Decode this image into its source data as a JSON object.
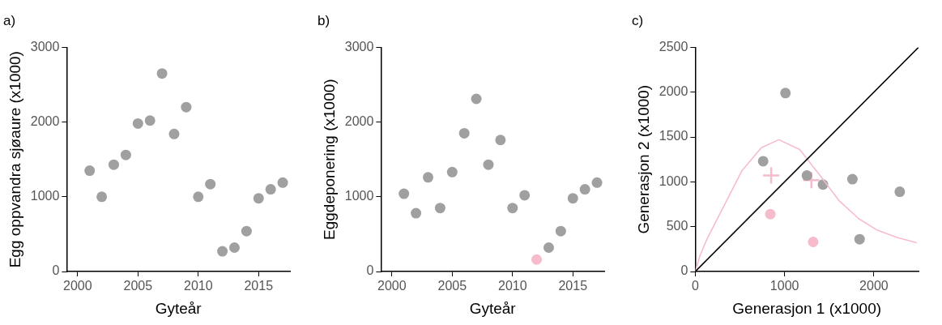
{
  "chart_data": [
    {
      "type": "scatter",
      "title": "a)",
      "xlabel": "Gyteår",
      "ylabel": "Egg oppvandra sjøaure (x1000)",
      "marker": "circle",
      "grid": false,
      "x": [
        2001,
        2002,
        2003,
        2004,
        2005,
        2006,
        2007,
        2008,
        2009,
        2010,
        2011,
        2012,
        2013,
        2014,
        2015,
        2016,
        2017
      ],
      "values": [
        1350,
        1000,
        1430,
        1560,
        1980,
        2020,
        2650,
        1840,
        2200,
        1000,
        1170,
        270,
        320,
        540,
        980,
        1100,
        1190
      ],
      "color": "#a0a0a0",
      "xlim": [
        1999.1,
        2017.6
      ],
      "xticks": [
        2000,
        2005,
        2010,
        2015
      ],
      "ylim": [
        0,
        3000
      ],
      "yticks": [
        0,
        1000,
        2000,
        3000
      ]
    },
    {
      "type": "scatter",
      "title": "b)",
      "xlabel": "Gyteår",
      "ylabel": "Eggdeponering (x1000)",
      "marker": "circle",
      "grid": false,
      "x": [
        2001,
        2002,
        2003,
        2004,
        2005,
        2006,
        2007,
        2008,
        2009,
        2010,
        2011,
        2012,
        2013,
        2014,
        2015,
        2016,
        2017
      ],
      "values": [
        1040,
        780,
        1260,
        850,
        1330,
        1850,
        2310,
        1430,
        1760,
        850,
        1020,
        160,
        320,
        540,
        980,
        1100,
        1190
      ],
      "colors": [
        "#a0a0a0",
        "#a0a0a0",
        "#a0a0a0",
        "#a0a0a0",
        "#a0a0a0",
        "#a0a0a0",
        "#a0a0a0",
        "#a0a0a0",
        "#a0a0a0",
        "#a0a0a0",
        "#a0a0a0",
        "#f7bccb",
        "#a0a0a0",
        "#a0a0a0",
        "#a0a0a0",
        "#a0a0a0",
        "#a0a0a0"
      ],
      "xlim": [
        1999.1,
        2017.6
      ],
      "xticks": [
        2000,
        2005,
        2010,
        2015
      ],
      "ylim": [
        0,
        3000
      ],
      "yticks": [
        0,
        1000,
        2000,
        3000
      ]
    },
    {
      "type": "scatter",
      "title": "c)",
      "xlabel": "Generasjon 1 (x1000)",
      "ylabel": "Generasjon 2 (x1000)",
      "marker": "circle",
      "grid": false,
      "xlim": [
        0,
        2500
      ],
      "xticks": [
        0,
        1000,
        2000
      ],
      "ylim": [
        0,
        2500
      ],
      "yticks": [
        0,
        500,
        1000,
        1500,
        2000,
        2500
      ],
      "series": [
        {
          "type": "line",
          "color": "#000000",
          "x": [
            0,
            2500
          ],
          "values": [
            0,
            2500
          ],
          "marker": "none"
        },
        {
          "type": "line",
          "color": "#f7bccb",
          "x": [
            0,
            50,
            130,
            300,
            520,
            740,
            935,
            1170,
            1390,
            1610,
            1830,
            2040,
            2260,
            2480
          ],
          "values": [
            0,
            170,
            360,
            690,
            1120,
            1380,
            1470,
            1360,
            1080,
            790,
            590,
            460,
            380,
            320
          ],
          "marker": "none"
        },
        {
          "type": "scatter",
          "color": "#a0a0a0",
          "x": [
            760,
            1010,
            1250,
            1430,
            1760,
            1840,
            2290
          ],
          "values": [
            1230,
            1990,
            1070,
            970,
            1030,
            360,
            890
          ]
        },
        {
          "type": "scatter",
          "color": "#f7bccb",
          "x": [
            840,
            1320
          ],
          "values": [
            640,
            330
          ]
        },
        {
          "type": "scatter",
          "color": "#f7bccb",
          "x": [
            850,
            1300
          ],
          "values": [
            1070,
            1020
          ],
          "marker": "cross"
        }
      ]
    }
  ]
}
